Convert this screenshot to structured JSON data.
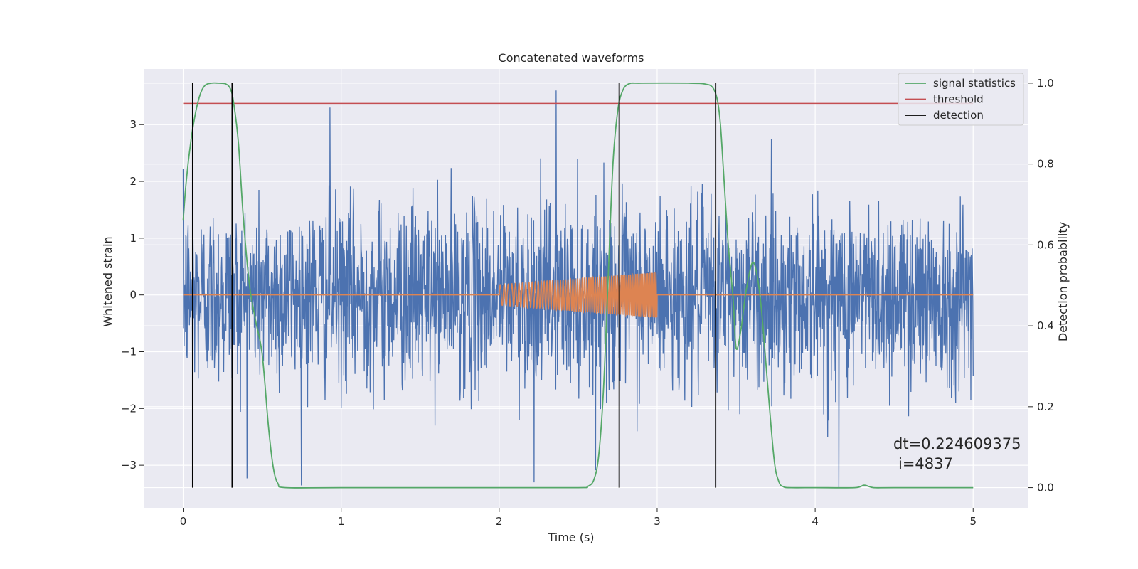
{
  "chart_data": {
    "type": "line",
    "title": "Concatenated waveforms",
    "xlabel": "Time (s)",
    "ylabel": "Whitened strain",
    "y2label": "Detection probability",
    "xlim": [
      -0.25,
      5.35
    ],
    "ylim": [
      -3.75,
      3.98
    ],
    "y2lim": [
      -0.05,
      1.035
    ],
    "xticks": [
      0,
      1,
      2,
      3,
      4,
      5
    ],
    "yticks": [
      -3,
      -2,
      -1,
      0,
      1,
      2,
      3
    ],
    "y2ticks": [
      0.0,
      0.2,
      0.4,
      0.6,
      0.8,
      1.0
    ],
    "xtick_labels": [
      "0",
      "1",
      "2",
      "3",
      "4",
      "5"
    ],
    "ytick_labels": [
      "−3",
      "−2",
      "−1",
      "0",
      "1",
      "2",
      "3"
    ],
    "y2tick_labels": [
      "0.0",
      "0.2",
      "0.4",
      "0.6",
      "0.8",
      "1.0"
    ],
    "grid": true,
    "legend_position": "top-right",
    "colors": {
      "background": "#eaeaf2",
      "grid": "#ffffff",
      "strain": "#4c72b0",
      "injected": "#dd8452",
      "signal_statistics": "#55a868",
      "threshold": "#c44e52",
      "detection": "#000000"
    },
    "strain_noise": {
      "x_range": [
        0,
        5
      ],
      "typical_amplitude": 0.8,
      "peak_range": [
        -3.4,
        3.6
      ],
      "notable_peaks": [
        {
          "x": 0.06,
          "y": -2.65
        },
        {
          "x": 0.93,
          "y": 3.3
        },
        {
          "x": 2.22,
          "y": -3.3
        },
        {
          "x": 2.36,
          "y": 3.6
        },
        {
          "x": 4.15,
          "y": -3.4
        }
      ]
    },
    "injected_signal": {
      "x_range": [
        2.0,
        3.0
      ],
      "amplitude_start": 0.18,
      "amplitude_end": 0.4,
      "baseline": 0
    },
    "series": [
      {
        "name": "signal statistics",
        "axis": "right",
        "x": [
          0.0,
          0.02,
          0.05,
          0.08,
          0.11,
          0.14,
          0.18,
          0.22,
          0.27,
          0.3,
          0.32,
          0.35,
          0.38,
          0.42,
          0.46,
          0.5,
          0.54,
          0.57,
          0.6,
          0.65,
          1.0,
          2.0,
          2.5,
          2.56,
          2.6,
          2.63,
          2.66,
          2.69,
          2.72,
          2.75,
          2.78,
          2.82,
          2.9,
          3.2,
          3.3,
          3.35,
          3.38,
          3.4,
          3.42,
          3.45,
          3.48,
          3.5,
          3.53,
          3.56,
          3.6,
          3.63,
          3.66,
          3.7,
          3.74,
          3.77,
          3.8,
          3.85,
          4.0,
          4.25,
          4.31,
          4.37,
          4.5,
          5.0
        ],
        "y": [
          0.66,
          0.76,
          0.86,
          0.93,
          0.975,
          0.995,
          1.0,
          1.0,
          0.998,
          0.985,
          0.95,
          0.85,
          0.67,
          0.5,
          0.41,
          0.33,
          0.15,
          0.05,
          0.01,
          0.0,
          0.0,
          0.0,
          0.0,
          0.003,
          0.02,
          0.08,
          0.24,
          0.52,
          0.8,
          0.93,
          0.98,
          0.998,
          1.0,
          1.0,
          0.998,
          0.99,
          0.96,
          0.9,
          0.78,
          0.6,
          0.47,
          0.345,
          0.39,
          0.48,
          0.555,
          0.53,
          0.44,
          0.25,
          0.07,
          0.015,
          0.002,
          0.0,
          0.0,
          0.0,
          0.006,
          0.0,
          0.0,
          0.0
        ]
      },
      {
        "name": "threshold",
        "axis": "right",
        "x": [
          0,
          5
        ],
        "y": [
          0.95,
          0.95
        ]
      }
    ],
    "detections": {
      "name": "detection",
      "x": [
        0.06,
        0.31,
        2.76,
        3.37
      ]
    },
    "annotation": {
      "line1": "dt=0.224609375",
      "line2": "i=4837"
    }
  }
}
